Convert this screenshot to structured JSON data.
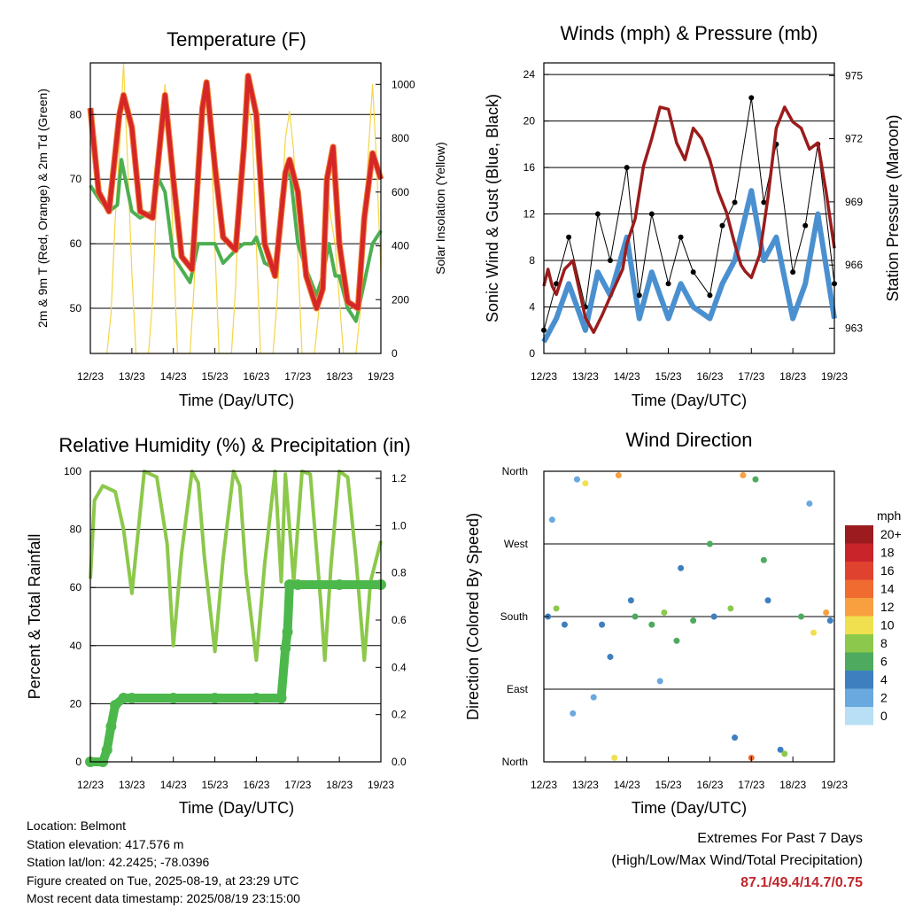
{
  "x_ticks": [
    "12/23",
    "13/23",
    "14/23",
    "15/23",
    "16/23",
    "17/23",
    "18/23",
    "19/23"
  ],
  "xlabel": "Time (Day/UTC)",
  "info": {
    "location": "Location: Belmont",
    "elevation": "Station elevation: 417.576 m",
    "latlon": "Station lat/lon: 42.2425; -78.0396",
    "created": "Figure created on Tue, 2025-08-19, at 23:29 UTC",
    "recent": "Most recent data timestamp: 2025/08/19 23:15:00"
  },
  "extremes": {
    "title": "Extremes For Past 7 Days",
    "subtitle": "(High/Low/Max Wind/Total Precipitation)",
    "values": "87.1/49.4/14.7/0.75",
    "color": "#c0272d"
  },
  "colors": {
    "temp2m": "#d62728",
    "temp9m": "#f08030",
    "dewpoint": "#4caf50",
    "solar": "#f5d547",
    "sonic": "#4a90d0",
    "gust": "#000000",
    "pressure": "#9b1c1c",
    "rh": "#8cc84b",
    "precip": "#4cb84c"
  },
  "chart_data": [
    {
      "type": "line",
      "title": "Temperature (F)",
      "xlabel": "Time (Day/UTC)",
      "ylabel": "2m & 9m T (Red, Orange) & 2m Td (Green)",
      "y2label": "Solar Insolation (Yellow)",
      "ylim": [
        43,
        88
      ],
      "y2lim": [
        0,
        1080
      ],
      "yticks": [
        50,
        60,
        70,
        80
      ],
      "y2ticks": [
        0,
        200,
        400,
        600,
        800,
        1000
      ],
      "series": [
        {
          "name": "2m T",
          "x": [
            12.0,
            12.2,
            12.45,
            12.7,
            12.8,
            13.0,
            13.2,
            13.5,
            13.7,
            13.8,
            14.0,
            14.2,
            14.45,
            14.7,
            14.8,
            15.0,
            15.2,
            15.5,
            15.7,
            15.8,
            16.0,
            16.2,
            16.45,
            16.7,
            16.8,
            17.0,
            17.2,
            17.45,
            17.6,
            17.7,
            17.85,
            18.0,
            18.2,
            18.45,
            18.6,
            18.8,
            19.0
          ],
          "values": [
            81,
            68,
            65,
            80,
            83,
            78,
            65,
            64,
            77,
            83,
            70,
            58,
            56,
            81,
            85,
            72,
            61,
            59,
            75,
            86,
            80,
            60,
            55,
            71,
            73,
            68,
            55,
            50,
            53,
            70,
            75,
            60,
            51,
            50,
            64,
            74,
            70
          ]
        },
        {
          "name": "2m Td",
          "x": [
            12.0,
            12.2,
            12.45,
            12.65,
            12.75,
            13.0,
            13.2,
            13.5,
            13.65,
            13.8,
            14.0,
            14.2,
            14.4,
            14.6,
            14.8,
            15.0,
            15.2,
            15.5,
            15.7,
            15.9,
            16.0,
            16.2,
            16.5,
            16.6,
            16.8,
            17.0,
            17.2,
            17.45,
            17.6,
            17.75,
            17.9,
            18.0,
            18.2,
            18.4,
            18.6,
            18.8,
            19.0
          ],
          "values": [
            69,
            67,
            65,
            66,
            73,
            65,
            64,
            65,
            70,
            68,
            58,
            56,
            54,
            60,
            60,
            60,
            57,
            59,
            60,
            60,
            61,
            57,
            56,
            67,
            72,
            60,
            56,
            52,
            55,
            60,
            55,
            55,
            50,
            48,
            54,
            60,
            62
          ]
        },
        {
          "name": "Solar Insolation",
          "x": [
            12.4,
            12.5,
            12.6,
            12.7,
            12.8,
            12.9,
            13.0,
            13.1,
            13.4,
            13.5,
            13.6,
            13.7,
            13.8,
            13.9,
            14.0,
            14.1,
            14.4,
            14.5,
            14.6,
            14.7,
            14.8,
            14.9,
            15.0,
            15.1,
            15.4,
            15.5,
            15.6,
            15.7,
            15.8,
            15.9,
            16.0,
            16.1,
            16.4,
            16.5,
            16.6,
            16.7,
            16.8,
            16.9,
            17.0,
            17.1,
            17.4,
            17.5,
            17.6,
            17.7,
            17.8,
            17.9,
            18.0,
            18.1,
            18.4,
            18.5,
            18.6,
            18.7,
            18.8,
            18.9,
            19.0
          ],
          "values": [
            0,
            150,
            500,
            750,
            1080,
            700,
            300,
            0,
            0,
            200,
            600,
            850,
            1000,
            800,
            400,
            0,
            0,
            250,
            650,
            900,
            950,
            850,
            400,
            0,
            0,
            250,
            650,
            900,
            920,
            850,
            400,
            0,
            0,
            200,
            500,
            800,
            900,
            750,
            350,
            0,
            0,
            150,
            400,
            600,
            500,
            400,
            200,
            0,
            0,
            150,
            450,
            750,
            1000,
            700,
            300
          ]
        }
      ]
    },
    {
      "type": "line",
      "title": "Winds (mph) & Pressure (mb)",
      "xlabel": "Time (Day/UTC)",
      "ylabel": "Sonic Wind & Gust (Blue, Black)",
      "y2label": "Station Pressure (Maroon)",
      "ylim": [
        0,
        25
      ],
      "y2lim": [
        961.8,
        975.6
      ],
      "yticks": [
        0,
        4,
        8,
        12,
        16,
        20,
        24
      ],
      "y2ticks": [
        963,
        966,
        969,
        972,
        975
      ],
      "series": [
        {
          "name": "Station Pressure",
          "x": [
            12.0,
            12.1,
            12.2,
            12.3,
            12.5,
            12.7,
            13.0,
            13.2,
            13.4,
            13.6,
            13.9,
            14.0,
            14.2,
            14.4,
            14.6,
            14.8,
            15.0,
            15.2,
            15.4,
            15.6,
            15.8,
            16.0,
            16.2,
            16.4,
            16.6,
            16.75,
            16.85,
            17.0,
            17.2,
            17.4,
            17.6,
            17.8,
            18.0,
            18.2,
            18.4,
            18.6,
            18.8,
            19.0
          ],
          "values": [
            965,
            965.8,
            965,
            964.6,
            965.8,
            966.2,
            963.5,
            962.8,
            963.6,
            964.5,
            965.8,
            967,
            968.2,
            970.7,
            972,
            973.5,
            973.4,
            971.8,
            971,
            972.5,
            972,
            971,
            969.5,
            968.5,
            967,
            966,
            965.7,
            965.4,
            966.5,
            969.2,
            972.5,
            973.5,
            972.8,
            972.5,
            971.5,
            971.8,
            969.5,
            966.8
          ]
        },
        {
          "name": "Gust",
          "x": [
            12.0,
            12.3,
            12.6,
            13.0,
            13.3,
            13.6,
            14.0,
            14.3,
            14.6,
            15.0,
            15.3,
            15.6,
            16.0,
            16.3,
            16.6,
            17.0,
            17.3,
            17.6,
            18.0,
            18.3,
            18.6,
            19.0
          ],
          "values": [
            2,
            6,
            10,
            4,
            12,
            8,
            16,
            5,
            12,
            6,
            10,
            7,
            5,
            11,
            13,
            22,
            13,
            18,
            7,
            11,
            18,
            6
          ]
        },
        {
          "name": "Sonic Wind",
          "x": [
            12.0,
            12.3,
            12.6,
            13.0,
            13.3,
            13.6,
            14.0,
            14.3,
            14.6,
            15.0,
            15.3,
            15.6,
            16.0,
            16.3,
            16.6,
            17.0,
            17.3,
            17.6,
            18.0,
            18.3,
            18.6,
            19.0
          ],
          "values": [
            1,
            3,
            6,
            2,
            7,
            5,
            10,
            3,
            7,
            3,
            6,
            4,
            3,
            6,
            8,
            14,
            8,
            10,
            3,
            6,
            12,
            3
          ]
        }
      ]
    },
    {
      "type": "line",
      "title": "Relative Humidity (%) & Precipitation (in)",
      "xlabel": "Time (Day/UTC)",
      "ylabel": "Percent & Total Rainfall",
      "ylim": [
        0,
        100
      ],
      "y2lim": [
        0,
        1.23
      ],
      "yticks": [
        0,
        20,
        40,
        60,
        80,
        100
      ],
      "y2ticks": [
        0.0,
        0.2,
        0.4,
        0.6,
        0.8,
        1.0,
        1.2
      ],
      "series": [
        {
          "name": "Relative Humidity",
          "x": [
            12.0,
            12.1,
            12.3,
            12.6,
            12.8,
            13.0,
            13.3,
            13.6,
            13.85,
            14.0,
            14.2,
            14.45,
            14.6,
            14.75,
            15.0,
            15.2,
            15.45,
            15.6,
            15.75,
            16.0,
            16.2,
            16.45,
            16.6,
            16.7,
            16.9,
            17.1,
            17.3,
            17.55,
            17.65,
            17.8,
            18.0,
            18.2,
            18.4,
            18.6,
            18.75,
            19.0
          ],
          "values": [
            63,
            90,
            95,
            93,
            80,
            58,
            100,
            98,
            75,
            40,
            72,
            100,
            96,
            70,
            38,
            70,
            100,
            95,
            65,
            35,
            68,
            100,
            62,
            99,
            62,
            100,
            99,
            55,
            35,
            68,
            100,
            98,
            70,
            35,
            62,
            76
          ]
        },
        {
          "name": "Total Precipitation",
          "x": [
            12.0,
            12.3,
            12.4,
            12.5,
            12.6,
            12.8,
            13.0,
            14.0,
            15.0,
            16.0,
            16.6,
            16.7,
            16.75,
            16.8,
            17.0,
            18.0,
            19.0
          ],
          "values": [
            0.0,
            0.0,
            0.05,
            0.15,
            0.24,
            0.27,
            0.27,
            0.27,
            0.27,
            0.27,
            0.27,
            0.48,
            0.55,
            0.75,
            0.75,
            0.75,
            0.75
          ]
        }
      ]
    },
    {
      "type": "scatter",
      "title": "Wind Direction",
      "xlabel": "Time (Day/UTC)",
      "ylabel": "Direction (Colored By Speed)",
      "ylim": [
        0,
        360
      ],
      "ycategories": [
        "North",
        "East",
        "South",
        "West",
        "North"
      ],
      "legend": {
        "title": "mph",
        "labels": [
          "20+",
          "18",
          "16",
          "14",
          "12",
          "10",
          "8",
          "6",
          "4",
          "2",
          "0"
        ],
        "colors": [
          "#9b1b1e",
          "#c8242a",
          "#e04230",
          "#f06b30",
          "#f8a040",
          "#f0e050",
          "#8cc84b",
          "#4daa5f",
          "#3e7fc0",
          "#6aa8e0",
          "#b8dff5"
        ]
      },
      "series": [
        {
          "name": "wind direction",
          "x": [
            12.1,
            12.3,
            12.5,
            12.8,
            13.0,
            13.2,
            13.4,
            13.7,
            13.8,
            14.2,
            14.6,
            14.9,
            15.3,
            15.6,
            16.0,
            16.1,
            16.5,
            16.8,
            17.0,
            17.1,
            17.4,
            17.7,
            18.2,
            18.5,
            18.8,
            18.9,
            12.2,
            12.7,
            13.6,
            14.1,
            14.8,
            15.2,
            16.6,
            17.3,
            17.8,
            18.4
          ],
          "values": [
            180,
            190,
            170,
            350,
            345,
            80,
            170,
            5,
            355,
            180,
            170,
            185,
            240,
            175,
            270,
            180,
            190,
            355,
            5,
            350,
            200,
            15,
            180,
            160,
            185,
            175,
            300,
            60,
            130,
            200,
            100,
            150,
            30,
            250,
            10,
            320
          ],
          "speed": [
            4,
            8,
            3,
            2,
            9,
            1,
            4,
            10,
            12,
            5,
            6,
            8,
            3,
            5,
            6,
            3,
            8,
            12,
            14,
            6,
            4,
            3,
            5,
            9,
            11,
            3,
            2,
            1,
            4,
            3,
            2,
            5,
            3,
            6,
            7,
            2
          ]
        }
      ]
    }
  ]
}
